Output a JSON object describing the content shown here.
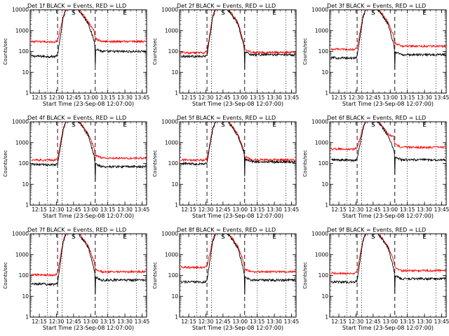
{
  "chart_data": {
    "type": "line",
    "yscale": "log",
    "ylim": [
      1,
      10000
    ],
    "yticks": [
      "1",
      "10",
      "100",
      "1000",
      "10000"
    ],
    "ylabel": "Counts/sec",
    "xlabel": "Start Time (23-Sep-08 12:07:00)",
    "xlim": [
      "12:07",
      "13:49"
    ],
    "xticks": [
      "12:15",
      "12:30",
      "12:45",
      "13:00",
      "13:15",
      "13:30",
      "13:45"
    ],
    "markers": {
      "S_time": "12:45",
      "E_time": "13:30",
      "S_label": "S",
      "E_label": "E",
      "dotted": [
        "12:22",
        "12:35",
        "13:15",
        "13:40"
      ],
      "dashed": [
        "12:31",
        "13:04"
      ]
    },
    "colors": {
      "events": "#000000",
      "lld": "#ff0000"
    },
    "panels": [
      {
        "title": "Det 1f BLACK = Events, RED = LLD",
        "events_base": [
          60,
          100
        ],
        "lld_base": [
          300,
          300
        ],
        "gap_time": "13:04"
      },
      {
        "title": "Det 2f BLACK = Events, RED = LLD",
        "events_base": [
          60,
          70
        ],
        "lld_base": [
          90,
          90
        ],
        "gap_time": "13:04"
      },
      {
        "title": "Det 3f BLACK = Events, RED = LLD",
        "events_base": [
          50,
          70
        ],
        "lld_base": [
          130,
          180
        ],
        "gap_time": "13:04"
      },
      {
        "title": "Det 4f BLACK = Events, RED = LLD",
        "events_base": [
          90,
          70
        ],
        "lld_base": [
          150,
          180
        ],
        "gap_time": "13:04"
      },
      {
        "title": "Det 5f BLACK = Events, RED = LLD",
        "events_base": [
          100,
          120
        ],
        "lld_base": [
          150,
          150
        ],
        "gap_time": "13:04"
      },
      {
        "title": "Det 6f BLACK = Events, RED = LLD",
        "events_base": [
          150,
          150
        ],
        "lld_base": [
          500,
          600
        ],
        "gap_time": "13:04"
      },
      {
        "title": "Det 7f BLACK = Events, RED = LLD",
        "events_base": [
          40,
          60
        ],
        "lld_base": [
          110,
          150
        ],
        "gap_time": "13:04"
      },
      {
        "title": "Det 8f BLACK = Events, RED = LLD",
        "events_base": [
          50,
          60
        ],
        "lld_base": [
          250,
          150
        ],
        "gap_time": "13:04"
      },
      {
        "title": "Det 9f BLACK = Events, RED = LLD",
        "events_base": [
          50,
          70
        ],
        "lld_base": [
          130,
          170
        ],
        "gap_time": "13:04"
      }
    ]
  }
}
